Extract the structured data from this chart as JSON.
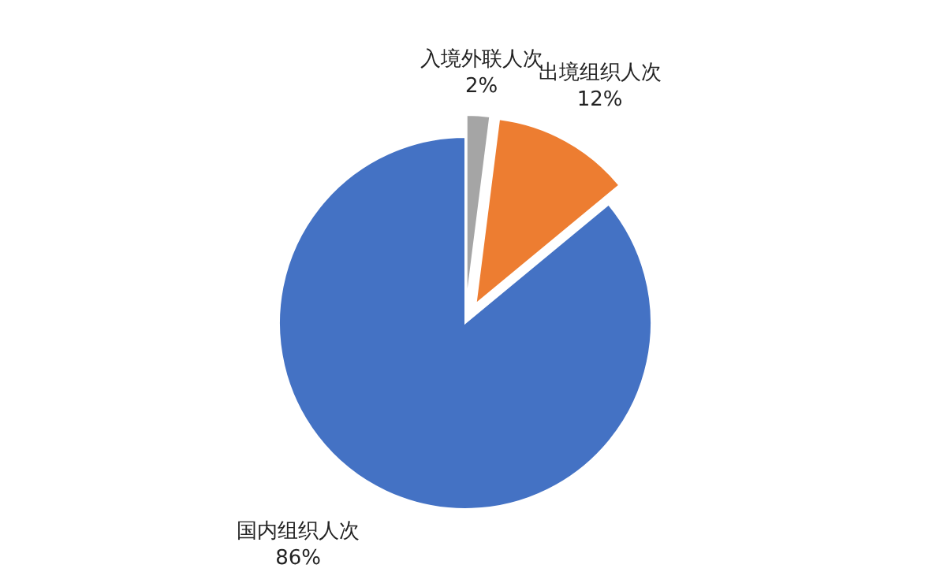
{
  "chart_data": {
    "type": "pie",
    "categories": [
      "入境外联人次",
      "出境组织人次",
      "国内组织人次"
    ],
    "values": [
      2,
      12,
      86
    ],
    "colors": [
      "#a5a5a5",
      "#ed7d31",
      "#4472c4"
    ],
    "value_labels": [
      "2%",
      "12%",
      "86%"
    ]
  }
}
